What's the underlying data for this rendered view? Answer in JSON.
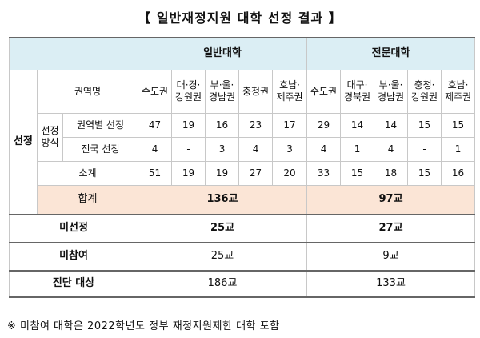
{
  "title": "【 일반재정지원 대학 선정 결과 】",
  "header": {
    "general": "일반대학",
    "junior": "전문대학"
  },
  "row_labels": {
    "selection": "선정",
    "method": "선정 방식",
    "region_name": "권역명",
    "regional": "권역별 선정",
    "national": "전국 선정",
    "subtotal": "소계",
    "total": "합계",
    "not_selected": "미선정",
    "not_participated": "미참여",
    "diagnosis": "진단 대상"
  },
  "regions": {
    "general": [
      "수도권",
      "대·경·\n강원권",
      "부·울·\n경남권",
      "충청권",
      "호남·\n제주권"
    ],
    "junior": [
      "수도권",
      "대구·\n경북권",
      "부·울·\n경남권",
      "충청·\n강원권",
      "호남·\n제주권"
    ]
  },
  "data": {
    "regional": {
      "general": [
        "47",
        "19",
        "16",
        "23",
        "17"
      ],
      "junior": [
        "29",
        "14",
        "14",
        "15",
        "15"
      ]
    },
    "national": {
      "general": [
        "4",
        "-",
        "3",
        "4",
        "3"
      ],
      "junior": [
        "4",
        "1",
        "4",
        "-",
        "1"
      ]
    },
    "subtotal": {
      "general": [
        "51",
        "19",
        "19",
        "27",
        "20"
      ],
      "junior": [
        "33",
        "15",
        "18",
        "15",
        "16"
      ]
    }
  },
  "totals": {
    "total": {
      "general": "136교",
      "junior": "97교"
    },
    "not_selected": {
      "general": "25교",
      "junior": "27교"
    },
    "not_participated": {
      "general": "25교",
      "junior": "9교"
    },
    "diagnosis": {
      "general": "186교",
      "junior": "133교"
    }
  },
  "note": "※ 미참여 대학은 2022학년도 정부 재정지원제한 대학 포함"
}
